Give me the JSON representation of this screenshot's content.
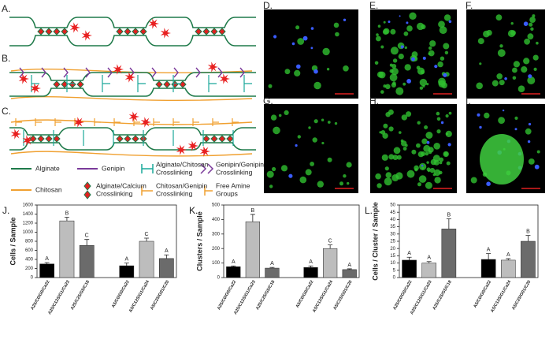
{
  "panels": {
    "a": "A.",
    "b": "B.",
    "c": "C.",
    "d": "D.",
    "e": "E.",
    "f": "F.",
    "g": "G.",
    "h": "H.",
    "i": "I."
  },
  "legend": [
    {
      "label": [
        "Alginate"
      ]
    },
    {
      "label": [
        "Genipin"
      ]
    },
    {
      "label": [
        "Alginate/Chitosan",
        "Crosslinking"
      ]
    },
    {
      "label": [
        "Genipin/Genipin",
        "Crosslinking"
      ]
    },
    {
      "label": [
        "Chitosan"
      ]
    },
    {
      "label": [
        "Alginate/Calcium",
        "Crosslinking"
      ]
    },
    {
      "label": [
        "Chitosan/Genipin",
        "Crosslinking"
      ]
    },
    {
      "label": [
        "Free Amine",
        "Groups"
      ]
    }
  ],
  "chart_data": [
    {
      "type": "bar",
      "panel": "J.",
      "ylabel": "Cells / Sample",
      "categories": [
        "A25/C0/G0/Ca22",
        "A25/C12S/G1/Ca23",
        "A25/C25/G5/C18",
        null,
        "A5/C0/G0/Ca22",
        "A5/C12S/G1/Ca24",
        "A5/C25/G01/C20"
      ],
      "values": [
        300,
        1250,
        710,
        null,
        260,
        800,
        420
      ],
      "errors": [
        30,
        80,
        130,
        null,
        60,
        70,
        80
      ],
      "annotations": [
        "A",
        "B",
        "C",
        null,
        "A",
        "C",
        "A"
      ],
      "colors": [
        "#000000",
        "#bdbdbd",
        "#6b6b6b",
        null,
        "#000000",
        "#bdbdbd",
        "#6b6b6b"
      ],
      "ylim": [
        0,
        1600
      ],
      "yticks": [
        0,
        200,
        400,
        600,
        800,
        1000,
        1200,
        1400,
        1600
      ]
    },
    {
      "type": "bar",
      "panel": "K.",
      "ylabel": "Clusters / Sample",
      "categories": [
        "A25/C0/G0/Ca22",
        "A25/C12S/G1/Ca23",
        "A25/C25/G5/C18",
        null,
        "A5/C0/G0/Ca22",
        "A5/C12S/G1/Ca24",
        "A5/C25/G01/C20"
      ],
      "values": [
        75,
        385,
        65,
        null,
        70,
        200,
        55
      ],
      "errors": [
        5,
        50,
        5,
        null,
        10,
        25,
        5
      ],
      "annotations": [
        "A",
        "B",
        "A",
        null,
        "A",
        "C",
        "A"
      ],
      "colors": [
        "#000000",
        "#bdbdbd",
        "#6b6b6b",
        null,
        "#000000",
        "#bdbdbd",
        "#6b6b6b"
      ],
      "ylim": [
        0,
        500
      ],
      "yticks": [
        0,
        100,
        200,
        300,
        400,
        500
      ]
    },
    {
      "type": "bar",
      "panel": "L.",
      "ylabel": "Cells / Cluster / Sample",
      "categories": [
        "A25/C0/G0/Ca22",
        "A25/C12S/G1/Ca23",
        "A25/C25/G5/C18",
        null,
        "A5/C0/G0/Ca22",
        "A5/C12S/G1/Ca24",
        "A5/C25/G01/C20"
      ],
      "values": [
        12,
        10,
        33.5,
        null,
        12.5,
        12,
        25
      ],
      "errors": [
        2,
        1,
        7,
        null,
        4,
        1,
        4
      ],
      "annotations": [
        "A",
        "A",
        "B",
        null,
        "A",
        "A",
        "B"
      ],
      "colors": [
        "#000000",
        "#bdbdbd",
        "#6b6b6b",
        null,
        "#000000",
        "#bdbdbd",
        "#6b6b6b"
      ],
      "ylim": [
        0,
        50
      ],
      "yticks": [
        0,
        5,
        10,
        15,
        20,
        25,
        30,
        35,
        40,
        45,
        50
      ]
    }
  ]
}
